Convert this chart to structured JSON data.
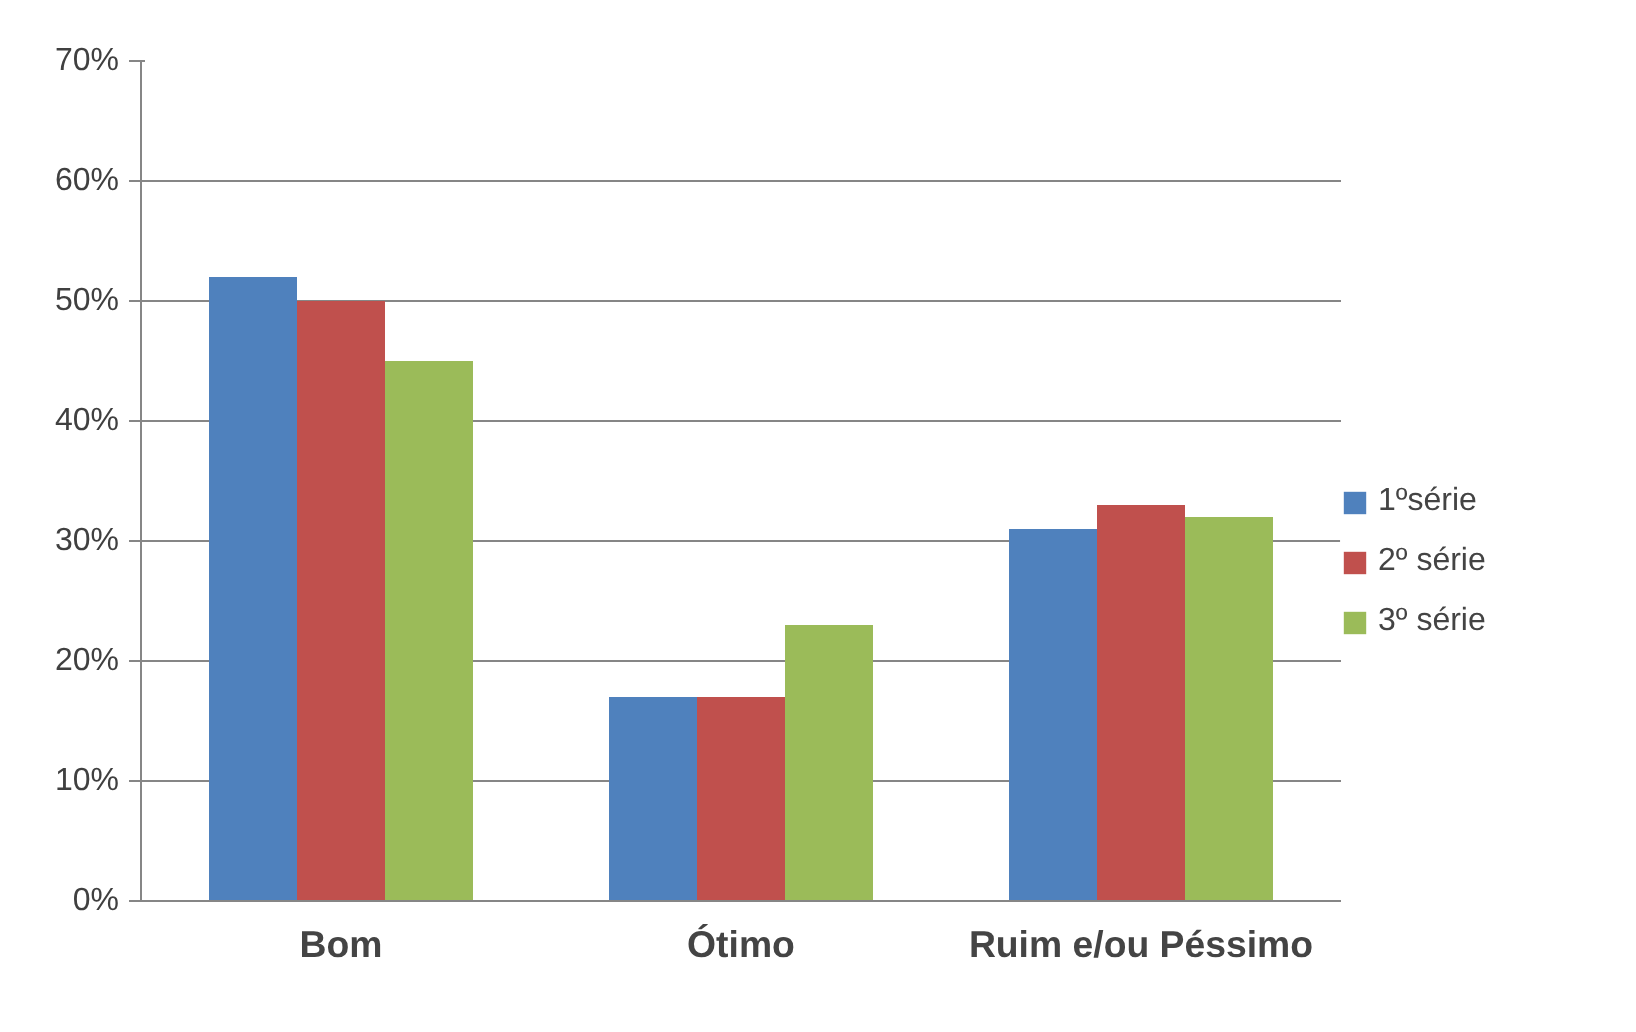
{
  "chart_data": {
    "type": "bar",
    "categories": [
      "Bom",
      "Ótimo",
      "Ruim e/ou Péssimo"
    ],
    "series": [
      {
        "name": "1ºsérie",
        "color": "#4f81bd",
        "values": [
          52,
          17,
          31
        ]
      },
      {
        "name": "2º série",
        "color": "#c0504d",
        "values": [
          50,
          17,
          33
        ]
      },
      {
        "name": "3º série",
        "color": "#9bbb59",
        "values": [
          45,
          23,
          32
        ]
      }
    ],
    "ylim": [
      0,
      70
    ],
    "yticks": [
      {
        "value": 0,
        "label": "0%"
      },
      {
        "value": 10,
        "label": "10%"
      },
      {
        "value": 20,
        "label": "20%"
      },
      {
        "value": 30,
        "label": "30%"
      },
      {
        "value": 40,
        "label": "40%"
      },
      {
        "value": 50,
        "label": "50%"
      },
      {
        "value": 60,
        "label": "60%"
      },
      {
        "value": 70,
        "label": "70%"
      }
    ],
    "grid": "y",
    "legend": "right"
  }
}
